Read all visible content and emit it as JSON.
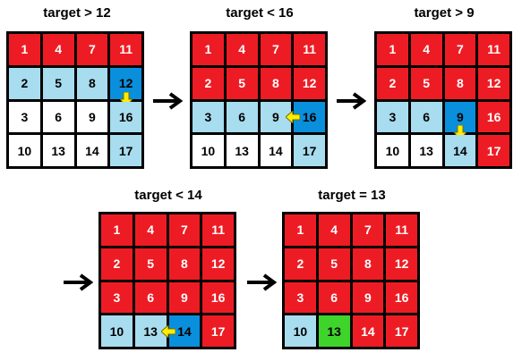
{
  "colors": {
    "eliminated": "#ed1c24",
    "candidate": "#a8dcef",
    "probe": "#0a8fdc",
    "unvisited": "#ffffff",
    "found": "#3fd42b",
    "hint_arrow": "#ffee00"
  },
  "steps": [
    {
      "title": "target > 12",
      "cells": [
        [
          {
            "v": "1",
            "s": "red"
          },
          {
            "v": "4",
            "s": "red"
          },
          {
            "v": "7",
            "s": "red"
          },
          {
            "v": "11",
            "s": "red"
          }
        ],
        [
          {
            "v": "2",
            "s": "light"
          },
          {
            "v": "5",
            "s": "light"
          },
          {
            "v": "8",
            "s": "light"
          },
          {
            "v": "12",
            "s": "blue",
            "hint": "down"
          }
        ],
        [
          {
            "v": "3",
            "s": "white"
          },
          {
            "v": "6",
            "s": "white"
          },
          {
            "v": "9",
            "s": "white"
          },
          {
            "v": "16",
            "s": "light"
          }
        ],
        [
          {
            "v": "10",
            "s": "white"
          },
          {
            "v": "13",
            "s": "white"
          },
          {
            "v": "14",
            "s": "white"
          },
          {
            "v": "17",
            "s": "light"
          }
        ]
      ]
    },
    {
      "title": "target < 16",
      "cells": [
        [
          {
            "v": "1",
            "s": "red"
          },
          {
            "v": "4",
            "s": "red"
          },
          {
            "v": "7",
            "s": "red"
          },
          {
            "v": "11",
            "s": "red"
          }
        ],
        [
          {
            "v": "2",
            "s": "red"
          },
          {
            "v": "5",
            "s": "red"
          },
          {
            "v": "8",
            "s": "red"
          },
          {
            "v": "12",
            "s": "red"
          }
        ],
        [
          {
            "v": "3",
            "s": "light"
          },
          {
            "v": "6",
            "s": "light"
          },
          {
            "v": "9",
            "s": "light"
          },
          {
            "v": "16",
            "s": "blue",
            "hint": "left"
          }
        ],
        [
          {
            "v": "10",
            "s": "white"
          },
          {
            "v": "13",
            "s": "white"
          },
          {
            "v": "14",
            "s": "white"
          },
          {
            "v": "17",
            "s": "light"
          }
        ]
      ]
    },
    {
      "title": "target > 9",
      "cells": [
        [
          {
            "v": "1",
            "s": "red"
          },
          {
            "v": "4",
            "s": "red"
          },
          {
            "v": "7",
            "s": "red"
          },
          {
            "v": "11",
            "s": "red"
          }
        ],
        [
          {
            "v": "2",
            "s": "red"
          },
          {
            "v": "5",
            "s": "red"
          },
          {
            "v": "8",
            "s": "red"
          },
          {
            "v": "12",
            "s": "red"
          }
        ],
        [
          {
            "v": "3",
            "s": "light"
          },
          {
            "v": "6",
            "s": "light"
          },
          {
            "v": "9",
            "s": "blue",
            "hint": "down"
          },
          {
            "v": "16",
            "s": "red"
          }
        ],
        [
          {
            "v": "10",
            "s": "white"
          },
          {
            "v": "13",
            "s": "white"
          },
          {
            "v": "14",
            "s": "light"
          },
          {
            "v": "17",
            "s": "red"
          }
        ]
      ]
    },
    {
      "title": "target < 14",
      "cells": [
        [
          {
            "v": "1",
            "s": "red"
          },
          {
            "v": "4",
            "s": "red"
          },
          {
            "v": "7",
            "s": "red"
          },
          {
            "v": "11",
            "s": "red"
          }
        ],
        [
          {
            "v": "2",
            "s": "red"
          },
          {
            "v": "5",
            "s": "red"
          },
          {
            "v": "8",
            "s": "red"
          },
          {
            "v": "12",
            "s": "red"
          }
        ],
        [
          {
            "v": "3",
            "s": "red"
          },
          {
            "v": "6",
            "s": "red"
          },
          {
            "v": "9",
            "s": "red"
          },
          {
            "v": "16",
            "s": "red"
          }
        ],
        [
          {
            "v": "10",
            "s": "light"
          },
          {
            "v": "13",
            "s": "light"
          },
          {
            "v": "14",
            "s": "blue",
            "hint": "left"
          },
          {
            "v": "17",
            "s": "red"
          }
        ]
      ]
    },
    {
      "title": "target = 13",
      "cells": [
        [
          {
            "v": "1",
            "s": "red"
          },
          {
            "v": "4",
            "s": "red"
          },
          {
            "v": "7",
            "s": "red"
          },
          {
            "v": "11",
            "s": "red"
          }
        ],
        [
          {
            "v": "2",
            "s": "red"
          },
          {
            "v": "5",
            "s": "red"
          },
          {
            "v": "8",
            "s": "red"
          },
          {
            "v": "12",
            "s": "red"
          }
        ],
        [
          {
            "v": "3",
            "s": "red"
          },
          {
            "v": "6",
            "s": "red"
          },
          {
            "v": "9",
            "s": "red"
          },
          {
            "v": "16",
            "s": "red"
          }
        ],
        [
          {
            "v": "10",
            "s": "light"
          },
          {
            "v": "13",
            "s": "green"
          },
          {
            "v": "14",
            "s": "red"
          },
          {
            "v": "17",
            "s": "red"
          }
        ]
      ]
    }
  ]
}
